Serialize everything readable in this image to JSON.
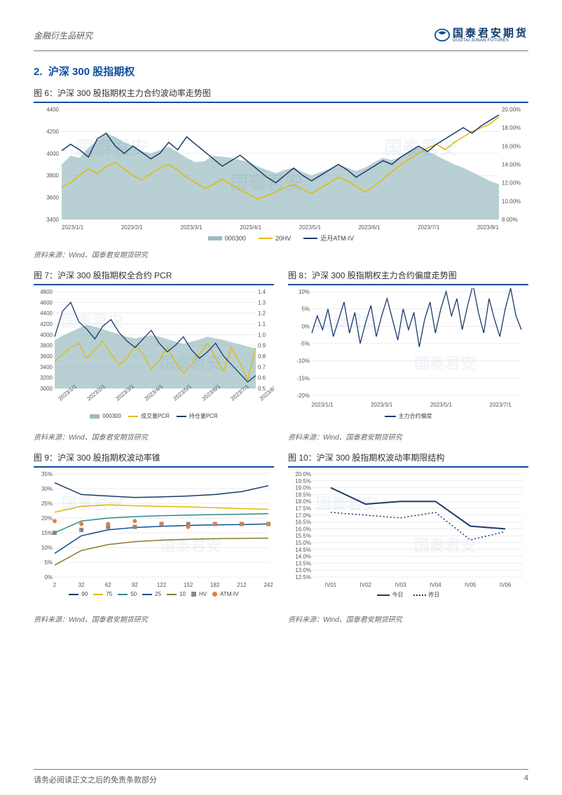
{
  "header": {
    "left": "金融衍生品研究",
    "logo_cn": "国泰君安期货",
    "logo_en": "GUOTAI JUNAN FUTURES"
  },
  "section": {
    "num": "2.",
    "title": "沪深 300 股指期权"
  },
  "figs": {
    "f6": {
      "title": "图 6：沪深 300 股指期权主力合约波动率走势图"
    },
    "f7": {
      "title": "图 7：沪深 300 股指期权全合约 PCR"
    },
    "f8": {
      "title": "图 8：沪深 300 股指期权主力合约偏度走势图"
    },
    "f9": {
      "title": "图 9：沪深 300 股指期权波动率锥"
    },
    "f10": {
      "title": "图 10：沪深 300 股指期权波动率期限结构"
    }
  },
  "source": "资料来源：Wind、国泰君安期货研究",
  "footer": {
    "disclaimer": "请务必阅读正文之后的免责条款部分",
    "page": "4"
  },
  "colors": {
    "brand": "#0b4f9c",
    "area": "#9abcc1",
    "navy": "#1b3a6b",
    "yellow": "#e6b800",
    "teal": "#2b8a8a",
    "olive": "#8a7d2b",
    "gray": "#888888",
    "orange": "#e67e3b",
    "grid": "#d9d9d9",
    "axis": "#888888",
    "bg": "#ffffff"
  },
  "chart6": {
    "type": "area+line",
    "xticks": [
      "2023/1/1",
      "2023/2/1",
      "2023/3/1",
      "2023/4/1",
      "2023/5/1",
      "2023/6/1",
      "2023/7/1",
      "2023/8/1"
    ],
    "yleft": {
      "min": 3400,
      "max": 4400,
      "step": 200
    },
    "yright": {
      "min": 8,
      "max": 20,
      "step": 2,
      "suffix": "%"
    },
    "legend": [
      {
        "label": "000300",
        "type": "area",
        "color": "#9abcc1"
      },
      {
        "label": "20HV",
        "type": "line",
        "color": "#e6b800"
      },
      {
        "label": "近月ATM-IV",
        "type": "line",
        "color": "#1b3a6b"
      }
    ],
    "area": [
      3900,
      3980,
      3960,
      4050,
      4120,
      4180,
      4150,
      4100,
      4070,
      4020,
      4000,
      4030,
      4060,
      4010,
      3960,
      3920,
      3930,
      3980,
      3970,
      3960,
      3940,
      3920,
      3880,
      3850,
      3820,
      3850,
      3870,
      3830,
      3800,
      3830,
      3860,
      3900,
      3870,
      3840,
      3870,
      3920,
      3960,
      3940,
      3970,
      4010,
      4060,
      4020,
      3980,
      3940,
      3900,
      3870,
      3830,
      3790,
      3750,
      3720
    ],
    "hv": [
      11.5,
      12.0,
      12.8,
      13.5,
      13.0,
      13.8,
      14.2,
      13.5,
      12.8,
      12.3,
      13.0,
      13.6,
      14.0,
      13.4,
      12.6,
      12.0,
      11.4,
      11.8,
      12.4,
      11.8,
      11.2,
      10.7,
      10.2,
      10.6,
      11.0,
      11.5,
      11.8,
      11.3,
      10.8,
      11.4,
      12.0,
      12.6,
      12.2,
      11.6,
      11.0,
      11.6,
      12.4,
      13.2,
      14.0,
      14.6,
      15.2,
      15.8,
      16.2,
      15.6,
      16.4,
      17.0,
      17.6,
      18.0,
      18.4,
      19.2
    ],
    "iv": [
      15.5,
      16.2,
      15.6,
      14.8,
      16.8,
      17.4,
      16.0,
      15.2,
      16.0,
      15.3,
      14.6,
      15.2,
      16.4,
      15.6,
      17.0,
      16.2,
      15.4,
      14.6,
      13.8,
      14.4,
      15.0,
      14.2,
      13.4,
      12.6,
      12.0,
      12.8,
      13.6,
      12.8,
      12.2,
      12.8,
      13.4,
      14.0,
      13.4,
      12.6,
      13.2,
      13.8,
      14.4,
      14.0,
      14.8,
      15.4,
      16.0,
      15.4,
      16.2,
      16.8,
      17.4,
      18.0,
      17.4,
      18.2,
      18.8,
      19.4
    ]
  },
  "chart7": {
    "type": "area+line",
    "xticks": [
      "2023/1/1",
      "2023/2/1",
      "2023/3/1",
      "2023/4/1",
      "2023/5/1",
      "2023/6/1",
      "2023/7/1",
      "2023/8/1"
    ],
    "yleft": {
      "min": 3000,
      "max": 4800,
      "step": 200
    },
    "yright": {
      "min": 0.5,
      "max": 1.4,
      "step": 0.1
    },
    "legend": [
      {
        "label": "000300",
        "type": "area",
        "color": "#9abcc1"
      },
      {
        "label": "成交量PCR",
        "type": "line",
        "color": "#e6b800"
      },
      {
        "label": "持仓量PCR",
        "type": "line",
        "color": "#1b3a6b"
      }
    ],
    "area": [
      3900,
      3980,
      4050,
      4120,
      4180,
      4150,
      4100,
      4050,
      4010,
      3960,
      3930,
      3960,
      3990,
      3960,
      3920,
      3870,
      3830,
      3870,
      3910,
      3960,
      3930,
      3900,
      3860,
      3820,
      3780,
      3740
    ],
    "vol": [
      0.75,
      0.82,
      0.88,
      0.92,
      0.78,
      0.86,
      0.94,
      0.82,
      0.72,
      0.78,
      0.9,
      0.82,
      0.68,
      0.76,
      0.88,
      0.74,
      0.64,
      0.72,
      0.82,
      0.92,
      0.78,
      0.66,
      0.88,
      0.74,
      0.58,
      0.88
    ],
    "oi": [
      0.98,
      1.22,
      1.3,
      1.12,
      1.05,
      0.96,
      1.08,
      1.14,
      1.02,
      0.94,
      0.88,
      0.96,
      1.04,
      0.92,
      0.84,
      0.9,
      0.98,
      0.86,
      0.78,
      0.84,
      0.92,
      0.8,
      0.72,
      0.64,
      0.56,
      0.62
    ]
  },
  "chart8": {
    "type": "line",
    "xticks": [
      "2023/1/1",
      "2023/3/1",
      "2023/5/1",
      "2023/7/1"
    ],
    "yleft": {
      "min": -20,
      "max": 10,
      "step": 5,
      "suffix": "%"
    },
    "legend": [
      {
        "label": "主力合约偏度",
        "type": "line",
        "color": "#1b3a6b"
      }
    ],
    "vals": [
      -2,
      3,
      -1,
      5,
      -3,
      2,
      7,
      -2,
      4,
      -5,
      1,
      6,
      -3,
      3,
      8,
      2,
      -4,
      5,
      -1,
      4,
      -6,
      2,
      7,
      -2,
      5,
      10,
      3,
      8,
      -1,
      6,
      12,
      4,
      -2,
      8,
      2,
      -3,
      5,
      11,
      3,
      -1
    ]
  },
  "chart9": {
    "type": "cone",
    "xticks": [
      2,
      32,
      62,
      92,
      122,
      152,
      182,
      212,
      242
    ],
    "yleft": {
      "min": 0,
      "max": 35,
      "step": 5,
      "suffix": "%"
    },
    "legend": [
      {
        "label": "90",
        "type": "line",
        "color": "#1b3a6b"
      },
      {
        "label": "75",
        "type": "line",
        "color": "#e6b800"
      },
      {
        "label": "50",
        "type": "line",
        "color": "#2b8a8a"
      },
      {
        "label": "25",
        "type": "line",
        "color": "#0b4f9c"
      },
      {
        "label": "10",
        "type": "line",
        "color": "#8a7d2b"
      },
      {
        "label": "HV",
        "type": "marker",
        "color": "#888888",
        "shape": "square"
      },
      {
        "label": "ATM-IV",
        "type": "marker",
        "color": "#e67e3b",
        "shape": "circle"
      }
    ],
    "p90": [
      32,
      28,
      27.5,
      27,
      27.2,
      27.5,
      28,
      29,
      31
    ],
    "p75": [
      22,
      24,
      24.5,
      24.2,
      24,
      23.8,
      23.5,
      23.2,
      23
    ],
    "p50": [
      15,
      19,
      20,
      20.5,
      20.8,
      21,
      21.2,
      21.3,
      21.5
    ],
    "p25": [
      8,
      14,
      16,
      16.8,
      17.2,
      17.5,
      17.7,
      17.8,
      18
    ],
    "p10": [
      4,
      9,
      11,
      12,
      12.5,
      12.8,
      13,
      13.1,
      13.2
    ],
    "hv": [
      15,
      16,
      17,
      17,
      18,
      18,
      18,
      18,
      18
    ],
    "iv": [
      19,
      18,
      18,
      19,
      18,
      17,
      18,
      18,
      18
    ]
  },
  "chart10": {
    "type": "term",
    "xticks": [
      "IV01",
      "IV02",
      "IV03",
      "IV04",
      "IV05",
      "IV06"
    ],
    "yleft": {
      "min": 12.5,
      "max": 20,
      "step": 0.5,
      "suffix": "%"
    },
    "legend": [
      {
        "label": "今日",
        "type": "solid",
        "color": "#1b3a6b"
      },
      {
        "label": "昨日",
        "type": "dashed",
        "color": "#1b3a6b"
      }
    ],
    "today": [
      19.0,
      17.8,
      18.0,
      18.0,
      16.2,
      16.0
    ],
    "yest": [
      17.2,
      17.0,
      16.8,
      17.2,
      15.2,
      15.8
    ]
  }
}
